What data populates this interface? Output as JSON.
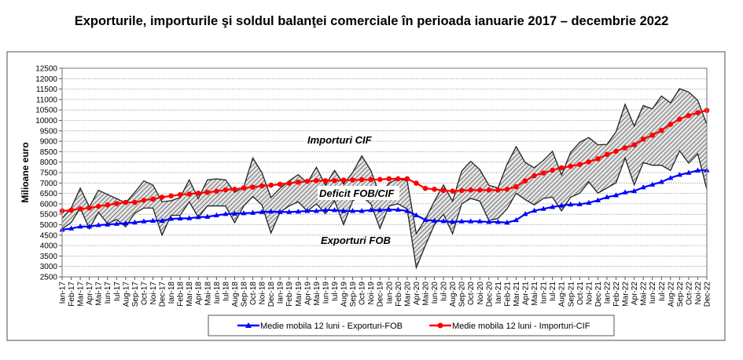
{
  "chart_data": {
    "type": "line",
    "title": "Exporturile, importurile şi soldul balanţei comerciale în perioada ianuarie 2017 – decembrie 2022",
    "ylabel": "Milioane  euro",
    "xlabel": "",
    "ylim": [
      2500,
      12500
    ],
    "ystep": 500,
    "grid": true,
    "legend_position": "bottom",
    "categories": [
      "Ian-17",
      "Feb-17",
      "Mar-17",
      "Apr-17",
      "Mai-17",
      "Iun-17",
      "Iul-17",
      "Aug-17",
      "Sep-17",
      "Oct-17",
      "Noi-17",
      "Dec-17",
      "Ian-18",
      "Feb-18",
      "Mar-18",
      "Apr-18",
      "Mai-18",
      "Iun-18",
      "Iul-18",
      "Aug-18",
      "Sep-18",
      "Oct-18",
      "Noi-18",
      "Dec-18",
      "Ian-19",
      "Feb-19",
      "Mar-19",
      "Apr-19",
      "Mai-19",
      "Iun-19",
      "Iul-19",
      "Aug-19",
      "Sep-19",
      "Oct-19",
      "Noi-19",
      "Dec-19",
      "Ian-20",
      "Feb-20",
      "Mar-20",
      "Apr-20",
      "Mai-20",
      "Iun-20",
      "Iul-20",
      "Aug-20",
      "Sep-20",
      "Oct-20",
      "Noi-20",
      "Dec-20",
      "Ian-21",
      "Feb-21",
      "Mar-21",
      "Apr-21",
      "Mai-21",
      "Iun-21",
      "Iul-21",
      "Aug-21",
      "Sep-21",
      "Oct-21",
      "Noi-21",
      "Dec-21",
      "Ian-22",
      "Feb-22",
      "Mar-22",
      "Apr-22",
      "Mai-22",
      "Iun-22",
      "Iul-22",
      "Aug-22",
      "Sep-22",
      "Oct-22",
      "Noi-22",
      "Dec-22"
    ],
    "series": [
      {
        "name": "Importuri CIF",
        "color": "#333333",
        "values": [
          5300,
          5800,
          6750,
          5850,
          6650,
          6450,
          6250,
          6050,
          6550,
          7100,
          6900,
          6100,
          6150,
          6300,
          7150,
          6250,
          7150,
          7200,
          7150,
          6550,
          6800,
          8200,
          7500,
          6300,
          6750,
          7100,
          7400,
          7000,
          7750,
          6900,
          7600,
          6950,
          7500,
          8300,
          7600,
          6400,
          7000,
          7200,
          7100,
          4570,
          5260,
          6130,
          6900,
          6130,
          7570,
          8040,
          7640,
          6890,
          6760,
          7900,
          8740,
          7980,
          7730,
          8080,
          8520,
          7390,
          8460,
          8950,
          9180,
          8830,
          8850,
          9450,
          10770,
          9730,
          10710,
          10550,
          11170,
          10840,
          11520,
          11360,
          10960,
          9810
        ]
      },
      {
        "name": "Exporturi FOB",
        "color": "#333333",
        "values": [
          4800,
          5100,
          5800,
          4800,
          5600,
          5050,
          5250,
          4900,
          5550,
          5800,
          5800,
          4500,
          5450,
          5450,
          6100,
          5350,
          5900,
          5900,
          5900,
          5100,
          5900,
          6350,
          5950,
          4600,
          5600,
          5900,
          6100,
          5650,
          6000,
          5530,
          6150,
          5000,
          6150,
          6350,
          6000,
          4820,
          5900,
          6000,
          5750,
          2940,
          4000,
          5000,
          5500,
          4570,
          6000,
          6260,
          6130,
          5200,
          5300,
          5760,
          6510,
          6200,
          5950,
          6260,
          6320,
          5660,
          6320,
          6510,
          7050,
          6510,
          6760,
          7010,
          8200,
          6910,
          7980,
          7850,
          7850,
          7600,
          8540,
          7950,
          8400,
          6700
        ]
      },
      {
        "name": "Medie mobila 12 luni - Exporturi-FOB",
        "color": "#0000ff",
        "marker": "triangle",
        "values": [
          4760,
          4820,
          4910,
          4910,
          4980,
          5010,
          5040,
          5070,
          5110,
          5160,
          5190,
          5190,
          5280,
          5300,
          5310,
          5360,
          5380,
          5450,
          5510,
          5530,
          5550,
          5570,
          5610,
          5630,
          5610,
          5610,
          5630,
          5660,
          5660,
          5700,
          5700,
          5660,
          5660,
          5660,
          5700,
          5700,
          5720,
          5720,
          5660,
          5450,
          5230,
          5190,
          5170,
          5130,
          5160,
          5160,
          5160,
          5130,
          5130,
          5100,
          5220,
          5510,
          5670,
          5760,
          5850,
          5920,
          5970,
          5980,
          6050,
          6170,
          6320,
          6410,
          6550,
          6610,
          6790,
          6920,
          7050,
          7240,
          7390,
          7490,
          7600,
          7610
        ]
      },
      {
        "name": "Medie mobila 12 luni - Importuri-CIF",
        "color": "#ff0000",
        "marker": "circle",
        "values": [
          5660,
          5700,
          5760,
          5800,
          5880,
          5950,
          6010,
          6070,
          6070,
          6170,
          6230,
          6320,
          6380,
          6440,
          6470,
          6510,
          6550,
          6600,
          6670,
          6700,
          6760,
          6800,
          6860,
          6890,
          6940,
          6990,
          7040,
          7080,
          7110,
          7110,
          7110,
          7140,
          7140,
          7160,
          7160,
          7170,
          7200,
          7200,
          7200,
          6990,
          6740,
          6700,
          6640,
          6610,
          6640,
          6660,
          6660,
          6660,
          6660,
          6700,
          6820,
          7100,
          7350,
          7480,
          7610,
          7730,
          7800,
          7890,
          8010,
          8160,
          8370,
          8520,
          8680,
          8830,
          9100,
          9290,
          9520,
          9810,
          10060,
          10230,
          10370,
          10480
        ]
      }
    ],
    "annotations": {
      "imports": "Importuri CIF",
      "deficit": "Deficit FOB/CIF",
      "exports": "Exporturi FOB"
    }
  }
}
